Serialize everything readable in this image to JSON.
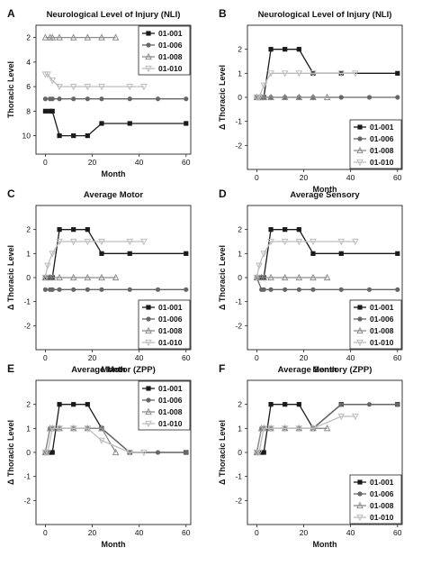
{
  "panels_order": [
    "A",
    "B",
    "C",
    "D",
    "E",
    "F"
  ],
  "chart_data": [
    {
      "panel_label": "A",
      "type": "line",
      "title": "Neurological Level of Injury (NLI)",
      "xlabel": "Month",
      "ylabel": "Thoracic Level",
      "xlim": [
        -4,
        62
      ],
      "ylim": [
        1,
        11.5
      ],
      "y_inverted": true,
      "xticks": [
        0,
        20,
        40,
        60
      ],
      "yticks": [
        2,
        4,
        6,
        8,
        10
      ],
      "legend_position": "top-right",
      "series": [
        {
          "name": "01-001",
          "color": "#1a1a1a",
          "marker": "square",
          "x": [
            0,
            2,
            3,
            6,
            12,
            18,
            24,
            36,
            60
          ],
          "y": [
            8,
            8,
            8,
            10,
            10,
            10,
            9,
            9,
            9
          ]
        },
        {
          "name": "01-006",
          "color": "#666666",
          "marker": "circle",
          "x": [
            0,
            2,
            3,
            6,
            12,
            18,
            24,
            36,
            48,
            60
          ],
          "y": [
            7,
            7,
            7,
            7,
            7,
            7,
            7,
            7,
            7,
            7
          ]
        },
        {
          "name": "01-008",
          "color": "#8c8c8c",
          "marker": "triangle",
          "x": [
            0,
            2,
            3,
            6,
            12,
            18,
            24,
            30
          ],
          "y": [
            2,
            2,
            2,
            2,
            2,
            2,
            2,
            2
          ]
        },
        {
          "name": "01-010",
          "color": "#bdbdbd",
          "marker": "triangle-down",
          "x": [
            0,
            1,
            3,
            6,
            12,
            18,
            24,
            36,
            42
          ],
          "y": [
            5,
            5,
            5.5,
            6,
            6,
            6,
            6,
            6,
            6
          ]
        }
      ]
    },
    {
      "panel_label": "B",
      "type": "line",
      "title": "Neurological Level of Injury (NLI)",
      "xlabel": "Month",
      "ylabel": "Δ Thoracic Level",
      "xlim": [
        -4,
        62
      ],
      "ylim": [
        -3,
        3
      ],
      "xticks": [
        0,
        20,
        40,
        60
      ],
      "yticks": [
        -2,
        -1,
        0,
        1,
        2
      ],
      "legend_position": "bottom-right",
      "series": [
        {
          "name": "01-001",
          "color": "#1a1a1a",
          "marker": "square",
          "x": [
            0,
            2,
            3,
            6,
            12,
            18,
            24,
            36,
            60
          ],
          "y": [
            0,
            0,
            0,
            2,
            2,
            2,
            1,
            1,
            1
          ]
        },
        {
          "name": "01-006",
          "color": "#666666",
          "marker": "circle",
          "x": [
            0,
            2,
            3,
            6,
            12,
            18,
            24,
            36,
            48,
            60
          ],
          "y": [
            0,
            0,
            0,
            0,
            0,
            0,
            0,
            0,
            0,
            0
          ]
        },
        {
          "name": "01-008",
          "color": "#8c8c8c",
          "marker": "triangle",
          "x": [
            0,
            2,
            3,
            6,
            12,
            18,
            24,
            30
          ],
          "y": [
            0,
            0,
            0,
            0,
            0,
            0,
            0,
            0
          ]
        },
        {
          "name": "01-010",
          "color": "#bdbdbd",
          "marker": "triangle-down",
          "x": [
            0,
            1,
            3,
            6,
            12,
            18,
            24,
            36,
            42
          ],
          "y": [
            0,
            0,
            0.5,
            1,
            1,
            1,
            1,
            1,
            1
          ]
        }
      ]
    },
    {
      "panel_label": "C",
      "type": "line",
      "title": "Average Motor",
      "xlabel": "Month",
      "ylabel": "Δ Thoracic Level",
      "xlim": [
        -4,
        62
      ],
      "ylim": [
        -3,
        3
      ],
      "xticks": [
        0,
        20,
        40,
        60
      ],
      "yticks": [
        -2,
        -1,
        0,
        1,
        2
      ],
      "legend_position": "bottom-right",
      "series": [
        {
          "name": "01-001",
          "color": "#1a1a1a",
          "marker": "square",
          "x": [
            0,
            2,
            3,
            6,
            12,
            18,
            24,
            36,
            60
          ],
          "y": [
            0,
            0,
            0,
            2,
            2,
            2,
            1,
            1,
            1
          ]
        },
        {
          "name": "01-006",
          "color": "#666666",
          "marker": "circle",
          "x": [
            0,
            2,
            3,
            6,
            12,
            18,
            24,
            36,
            48,
            60
          ],
          "y": [
            -0.5,
            -0.5,
            -0.5,
            -0.5,
            -0.5,
            -0.5,
            -0.5,
            -0.5,
            -0.5,
            -0.5
          ]
        },
        {
          "name": "01-008",
          "color": "#8c8c8c",
          "marker": "triangle",
          "x": [
            0,
            2,
            3,
            6,
            12,
            18,
            24,
            30
          ],
          "y": [
            0,
            0,
            0,
            0,
            0,
            0,
            0,
            0
          ]
        },
        {
          "name": "01-010",
          "color": "#bdbdbd",
          "marker": "triangle-down",
          "x": [
            0,
            1,
            3,
            6,
            12,
            18,
            24,
            36,
            42
          ],
          "y": [
            0,
            0.5,
            1,
            1.5,
            1.5,
            1.5,
            1.5,
            1.5,
            1.5
          ]
        }
      ]
    },
    {
      "panel_label": "D",
      "type": "line",
      "title": "Average Sensory",
      "xlabel": "Month",
      "ylabel": "Δ Thoracic Level",
      "xlim": [
        -4,
        62
      ],
      "ylim": [
        -3,
        3
      ],
      "xticks": [
        0,
        20,
        40,
        60
      ],
      "yticks": [
        -2,
        -1,
        0,
        1,
        2
      ],
      "legend_position": "bottom-right",
      "series": [
        {
          "name": "01-001",
          "color": "#1a1a1a",
          "marker": "square",
          "x": [
            0,
            2,
            3,
            6,
            12,
            18,
            24,
            36,
            60
          ],
          "y": [
            0,
            0,
            0,
            2,
            2,
            2,
            1,
            1,
            1
          ]
        },
        {
          "name": "01-006",
          "color": "#666666",
          "marker": "circle",
          "x": [
            0,
            2,
            3,
            6,
            12,
            18,
            24,
            36,
            48,
            60
          ],
          "y": [
            0,
            -0.5,
            -0.5,
            -0.5,
            -0.5,
            -0.5,
            -0.5,
            -0.5,
            -0.5,
            -0.5
          ]
        },
        {
          "name": "01-008",
          "color": "#8c8c8c",
          "marker": "triangle",
          "x": [
            0,
            2,
            3,
            6,
            12,
            18,
            24,
            30
          ],
          "y": [
            0,
            0,
            0,
            0,
            0,
            0,
            0,
            0
          ]
        },
        {
          "name": "01-010",
          "color": "#bdbdbd",
          "marker": "triangle-down",
          "x": [
            0,
            1,
            3,
            6,
            12,
            18,
            24,
            36,
            42
          ],
          "y": [
            0,
            0.5,
            1,
            1.5,
            1.5,
            1.5,
            1.5,
            1.5,
            1.5
          ]
        }
      ]
    },
    {
      "panel_label": "E",
      "type": "line",
      "title": "Average Motor (ZPP)",
      "xlabel": "Month",
      "ylabel": "Δ Thoracic Level",
      "xlim": [
        -4,
        62
      ],
      "ylim": [
        -3,
        3
      ],
      "xticks": [
        0,
        20,
        40,
        60
      ],
      "yticks": [
        -2,
        -1,
        0,
        1,
        2
      ],
      "legend_position": "top-right",
      "series": [
        {
          "name": "01-001",
          "color": "#1a1a1a",
          "marker": "square",
          "x": [
            0,
            2,
            3,
            6,
            12,
            18,
            24,
            36,
            60
          ],
          "y": [
            0,
            0,
            0,
            2,
            2,
            2,
            1,
            0,
            0
          ]
        },
        {
          "name": "01-006",
          "color": "#666666",
          "marker": "circle",
          "x": [
            0,
            2,
            3,
            6,
            12,
            18,
            24,
            36,
            48,
            60
          ],
          "y": [
            0,
            1,
            1,
            1,
            1,
            1,
            1,
            0,
            0,
            0
          ]
        },
        {
          "name": "01-008",
          "color": "#8c8c8c",
          "marker": "triangle",
          "x": [
            0,
            2,
            3,
            6,
            12,
            18,
            24,
            30
          ],
          "y": [
            0,
            1,
            1,
            1,
            1,
            1,
            1,
            0
          ]
        },
        {
          "name": "01-010",
          "color": "#bdbdbd",
          "marker": "triangle-down",
          "x": [
            0,
            1,
            3,
            6,
            12,
            18,
            24,
            36,
            42
          ],
          "y": [
            0,
            0,
            1,
            1,
            1,
            1,
            0.5,
            0,
            0
          ]
        }
      ]
    },
    {
      "panel_label": "F",
      "type": "line",
      "title": "Average Sensory (ZPP)",
      "xlabel": "Month",
      "ylabel": "Δ Thoracic Level",
      "xlim": [
        -4,
        62
      ],
      "ylim": [
        -3,
        3
      ],
      "xticks": [
        0,
        20,
        40,
        60
      ],
      "yticks": [
        -2,
        -1,
        0,
        1,
        2
      ],
      "legend_position": "bottom-right",
      "series": [
        {
          "name": "01-001",
          "color": "#1a1a1a",
          "marker": "square",
          "x": [
            0,
            2,
            3,
            6,
            12,
            18,
            24,
            36,
            60
          ],
          "y": [
            0,
            0,
            0,
            2,
            2,
            2,
            1,
            2,
            2
          ]
        },
        {
          "name": "01-006",
          "color": "#666666",
          "marker": "circle",
          "x": [
            0,
            2,
            3,
            6,
            12,
            18,
            24,
            36,
            48,
            60
          ],
          "y": [
            0,
            1,
            1,
            1,
            1,
            1,
            1,
            2,
            2,
            2
          ]
        },
        {
          "name": "01-008",
          "color": "#8c8c8c",
          "marker": "triangle",
          "x": [
            0,
            2,
            3,
            6,
            12,
            18,
            24,
            30
          ],
          "y": [
            0,
            1,
            1,
            1,
            1,
            1,
            1,
            1
          ]
        },
        {
          "name": "01-010",
          "color": "#bdbdbd",
          "marker": "triangle-down",
          "x": [
            0,
            1,
            3,
            6,
            12,
            18,
            24,
            36,
            42
          ],
          "y": [
            0,
            0,
            1,
            1,
            1,
            1,
            1,
            1.5,
            1.5
          ]
        }
      ]
    }
  ]
}
